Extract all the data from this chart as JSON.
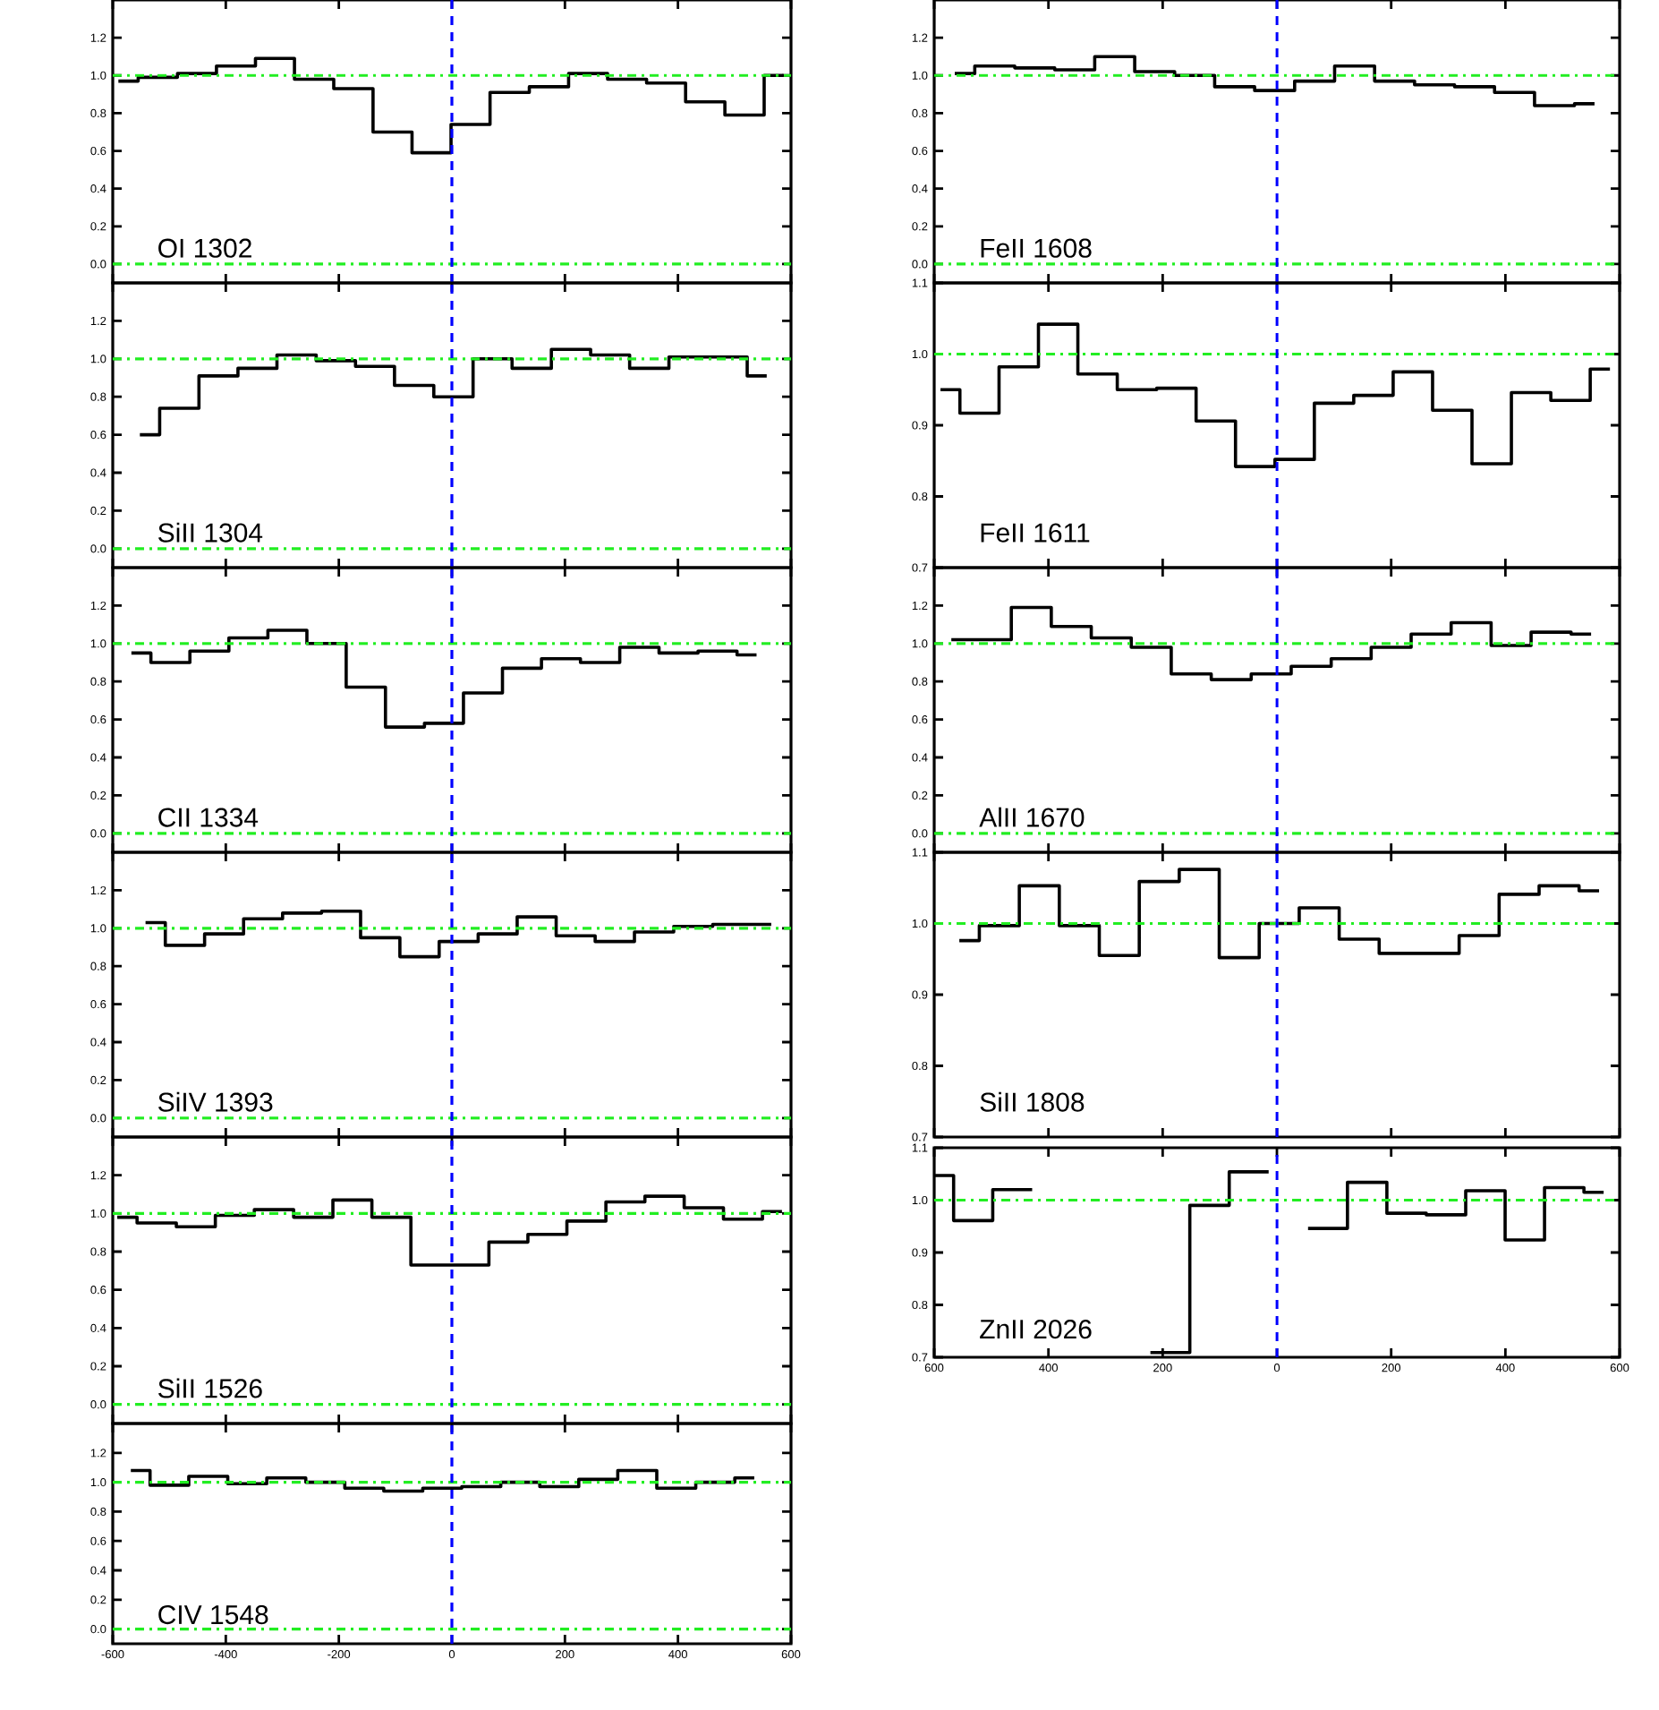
{
  "chart_data": [
    {
      "type": "step",
      "title": "OI 1302",
      "color": "#000000",
      "xlim": [
        -600,
        600
      ],
      "ylim": [
        -0.1,
        1.4
      ],
      "tick_labels": "y",
      "xticks": [
        -600,
        -400,
        -200,
        0,
        200,
        400,
        600
      ],
      "yticks": [
        {
          "value": 0,
          "label": "0.0"
        },
        {
          "value": 0.2,
          "label": "0.2"
        },
        {
          "value": 0.4,
          "label": "0.4"
        },
        {
          "value": 0.6,
          "label": "0.6"
        },
        {
          "value": 0.8,
          "label": "0.8"
        },
        {
          "value": 1.0,
          "label": "1.0"
        },
        {
          "value": 1.2,
          "label": "1.2"
        }
      ],
      "x": [
        -590,
        -520,
        -451,
        -382,
        -313,
        -244,
        -174,
        -105,
        -36,
        33,
        102,
        172,
        241,
        310,
        379,
        448,
        518,
        587
      ],
      "values": [
        0.97,
        0.99,
        1.01,
        1.05,
        1.09,
        0.98,
        0.93,
        0.7,
        0.59,
        0.74,
        0.91,
        0.94,
        1.01,
        0.98,
        0.96,
        0.86,
        0.79,
        1.0
      ],
      "ref_lines": [
        {
          "axis": "y",
          "value": 0,
          "color": "#22ee22",
          "line_style": "dashdot"
        },
        {
          "axis": "y",
          "value": 1,
          "color": "#22ee22",
          "line_style": "dashdot"
        },
        {
          "axis": "x",
          "value": 0,
          "color": "#0000ff",
          "line_style": "dashed"
        }
      ]
    },
    {
      "type": "step",
      "title": "SiII 1304",
      "color": "#000000",
      "xlim": [
        -600,
        600
      ],
      "ylim": [
        -0.1,
        1.4
      ],
      "tick_labels": "y",
      "xticks": [
        -600,
        -400,
        -200,
        0,
        200,
        400,
        600
      ],
      "yticks": [
        {
          "value": 0,
          "label": "0.0"
        },
        {
          "value": 0.2,
          "label": "0.2"
        },
        {
          "value": 0.4,
          "label": "0.4"
        },
        {
          "value": 0.6,
          "label": "0.6"
        },
        {
          "value": 0.8,
          "label": "0.8"
        },
        {
          "value": 1.0,
          "label": "1.0"
        },
        {
          "value": 1.2,
          "label": "1.2"
        }
      ],
      "x": [
        -552,
        -482,
        -413,
        -344,
        -275,
        -205,
        -136,
        -67,
        3,
        72,
        141,
        211,
        280,
        349,
        419,
        488,
        557
      ],
      "values": [
        0.6,
        0.74,
        0.91,
        0.95,
        1.02,
        0.99,
        0.96,
        0.86,
        0.8,
        1.0,
        0.95,
        1.05,
        1.02,
        0.95,
        1.01,
        1.01,
        0.91
      ],
      "ref_lines": [
        {
          "axis": "y",
          "value": 0,
          "color": "#22ee22",
          "line_style": "dashdot"
        },
        {
          "axis": "y",
          "value": 1,
          "color": "#22ee22",
          "line_style": "dashdot"
        },
        {
          "axis": "x",
          "value": 0,
          "color": "#0000ff",
          "line_style": "dashed"
        }
      ]
    },
    {
      "type": "step",
      "title": "CII 1334",
      "color": "#000000",
      "xlim": [
        -600,
        600
      ],
      "ylim": [
        -0.1,
        1.4
      ],
      "tick_labels": "y",
      "xticks": [
        -600,
        -400,
        -200,
        0,
        200,
        400,
        600
      ],
      "yticks": [
        {
          "value": 0,
          "label": "0.0"
        },
        {
          "value": 0.2,
          "label": "0.2"
        },
        {
          "value": 0.4,
          "label": "0.4"
        },
        {
          "value": 0.6,
          "label": "0.6"
        },
        {
          "value": 0.8,
          "label": "0.8"
        },
        {
          "value": 1.0,
          "label": "1.0"
        },
        {
          "value": 1.2,
          "label": "1.2"
        }
      ],
      "x": [
        -567,
        -498,
        -429,
        -360,
        -291,
        -222,
        -152,
        -83,
        -14,
        55,
        124,
        193,
        262,
        332,
        401,
        470,
        539
      ],
      "values": [
        0.95,
        0.9,
        0.96,
        1.03,
        1.07,
        1.0,
        0.77,
        0.56,
        0.58,
        0.74,
        0.87,
        0.92,
        0.9,
        0.98,
        0.95,
        0.96,
        0.94
      ],
      "ref_lines": [
        {
          "axis": "y",
          "value": 0,
          "color": "#22ee22",
          "line_style": "dashdot"
        },
        {
          "axis": "y",
          "value": 1,
          "color": "#22ee22",
          "line_style": "dashdot"
        },
        {
          "axis": "x",
          "value": 0,
          "color": "#0000ff",
          "line_style": "dashed"
        }
      ]
    },
    {
      "type": "step",
      "title": "SiIV 1393",
      "color": "#000000",
      "xlim": [
        -600,
        600
      ],
      "ylim": [
        -0.1,
        1.4
      ],
      "tick_labels": "y",
      "xticks": [
        -600,
        -400,
        -200,
        0,
        200,
        400,
        600
      ],
      "yticks": [
        {
          "value": 0,
          "label": "0.0"
        },
        {
          "value": 0.2,
          "label": "0.2"
        },
        {
          "value": 0.4,
          "label": "0.4"
        },
        {
          "value": 0.6,
          "label": "0.6"
        },
        {
          "value": 0.8,
          "label": "0.8"
        },
        {
          "value": 1.0,
          "label": "1.0"
        },
        {
          "value": 1.2,
          "label": "1.2"
        }
      ],
      "x": [
        -542,
        -472,
        -403,
        -334,
        -265,
        -196,
        -127,
        -57,
        12,
        81,
        150,
        219,
        288,
        358,
        427,
        496,
        565
      ],
      "values": [
        1.03,
        0.91,
        0.97,
        1.05,
        1.08,
        1.09,
        0.95,
        0.85,
        0.93,
        0.97,
        1.06,
        0.96,
        0.93,
        0.98,
        1.01,
        1.02,
        1.02
      ],
      "ref_lines": [
        {
          "axis": "y",
          "value": 0,
          "color": "#22ee22",
          "line_style": "dashdot"
        },
        {
          "axis": "y",
          "value": 1,
          "color": "#22ee22",
          "line_style": "dashdot"
        },
        {
          "axis": "x",
          "value": 0,
          "color": "#0000ff",
          "line_style": "dashed"
        }
      ]
    },
    {
      "type": "step",
      "title": "SiII 1526",
      "color": "#000000",
      "xlim": [
        -600,
        600
      ],
      "ylim": [
        -0.1,
        1.4
      ],
      "tick_labels": "y",
      "xticks": [
        -600,
        -400,
        -200,
        0,
        200,
        400,
        600
      ],
      "yticks": [
        {
          "value": 0,
          "label": "0.0"
        },
        {
          "value": 0.2,
          "label": "0.2"
        },
        {
          "value": 0.4,
          "label": "0.4"
        },
        {
          "value": 0.6,
          "label": "0.6"
        },
        {
          "value": 0.8,
          "label": "0.8"
        },
        {
          "value": 1.0,
          "label": "1.0"
        },
        {
          "value": 1.2,
          "label": "1.2"
        }
      ],
      "x": [
        -592,
        -522,
        -453,
        -384,
        -315,
        -245,
        -176,
        -107,
        -38,
        31,
        100,
        169,
        238,
        307,
        376,
        446,
        515,
        584
      ],
      "values": [
        0.98,
        0.95,
        0.93,
        0.99,
        1.02,
        0.98,
        1.07,
        0.98,
        0.73,
        0.73,
        0.85,
        0.89,
        0.96,
        1.06,
        1.09,
        1.03,
        0.97,
        1.01
      ],
      "ref_lines": [
        {
          "axis": "y",
          "value": 0,
          "color": "#22ee22",
          "line_style": "dashdot"
        },
        {
          "axis": "y",
          "value": 1,
          "color": "#22ee22",
          "line_style": "dashdot"
        },
        {
          "axis": "x",
          "value": 0,
          "color": "#0000ff",
          "line_style": "dashed"
        }
      ]
    },
    {
      "type": "step",
      "title": "CIV 1548",
      "color": "#000000",
      "xlim": [
        -600,
        600
      ],
      "ylim": [
        -0.1,
        1.4
      ],
      "xticks": [
        -600,
        -400,
        -200,
        0,
        200,
        400,
        600
      ],
      "yticks": [
        {
          "value": 0,
          "label": "0.0"
        },
        {
          "value": 0.2,
          "label": "0.2"
        },
        {
          "value": 0.4,
          "label": "0.4"
        },
        {
          "value": 0.6,
          "label": "0.6"
        },
        {
          "value": 0.8,
          "label": "0.8"
        },
        {
          "value": 1.0,
          "label": "1.0"
        },
        {
          "value": 1.2,
          "label": "1.2"
        }
      ],
      "x": [
        -568,
        -500,
        -431,
        -362,
        -293,
        -224,
        -155,
        -86,
        -17,
        52,
        121,
        190,
        259,
        328,
        397,
        466,
        535
      ],
      "values": [
        1.08,
        0.98,
        1.04,
        0.99,
        1.03,
        1.0,
        0.96,
        0.94,
        0.96,
        0.97,
        1.0,
        0.97,
        1.02,
        1.08,
        0.96,
        1.0,
        1.03
      ],
      "ref_lines": [
        {
          "axis": "y",
          "value": 0,
          "color": "#22ee22",
          "line_style": "dashdot"
        },
        {
          "axis": "y",
          "value": 1,
          "color": "#22ee22",
          "line_style": "dashdot"
        },
        {
          "axis": "x",
          "value": 0,
          "color": "#0000ff",
          "line_style": "dashed"
        }
      ]
    },
    {
      "type": "step",
      "title": "FeII 1608",
      "color": "#000000",
      "xlim": [
        -600,
        600
      ],
      "ylim": [
        -0.1,
        1.4
      ],
      "tick_labels": "y",
      "xticks": [
        -600,
        -400,
        -200,
        0,
        200,
        400,
        600
      ],
      "yticks": [
        {
          "value": 0,
          "label": "0.0"
        },
        {
          "value": 0.2,
          "label": "0.2"
        },
        {
          "value": 0.4,
          "label": "0.4"
        },
        {
          "value": 0.6,
          "label": "0.6"
        },
        {
          "value": 0.8,
          "label": "0.8"
        },
        {
          "value": 1.0,
          "label": "1.0"
        },
        {
          "value": 1.2,
          "label": "1.2"
        }
      ],
      "x": [
        -564,
        -494,
        -424,
        -354,
        -284,
        -214,
        -144,
        -74,
        -4,
        66,
        136,
        206,
        276,
        346,
        416,
        486,
        556
      ],
      "values": [
        1.01,
        1.05,
        1.04,
        1.03,
        1.1,
        1.02,
        1.0,
        0.94,
        0.92,
        0.97,
        1.05,
        0.97,
        0.95,
        0.94,
        0.91,
        0.84,
        0.85
      ],
      "ref_lines": [
        {
          "axis": "y",
          "value": 0,
          "color": "#22ee22",
          "line_style": "dashdot"
        },
        {
          "axis": "y",
          "value": 1,
          "color": "#22ee22",
          "line_style": "dashdot"
        },
        {
          "axis": "x",
          "value": 0,
          "color": "#0000ff",
          "line_style": "dashed"
        }
      ]
    },
    {
      "type": "step",
      "title": "FeII 1611",
      "color": "#000000",
      "xlim": [
        -600,
        600
      ],
      "ylim": [
        0.7,
        1.1
      ],
      "tick_labels": "y",
      "xticks": [
        -600,
        -400,
        -200,
        0,
        200,
        400,
        600
      ],
      "yticks": [
        {
          "value": 0.7,
          "label": "0.7"
        },
        {
          "value": 0.8,
          "label": "0.8"
        },
        {
          "value": 0.9,
          "label": "0.9"
        },
        {
          "value": 1.0,
          "label": "1.0"
        },
        {
          "value": 1.1,
          "label": "1.1"
        }
      ],
      "x": [
        -589,
        -521,
        -452,
        -383,
        -314,
        -245,
        -176,
        -107,
        -38,
        31,
        100,
        169,
        238,
        307,
        376,
        445,
        514,
        583
      ],
      "values": [
        0.95,
        0.917,
        0.982,
        1.042,
        0.972,
        0.95,
        0.952,
        0.906,
        0.842,
        0.852,
        0.931,
        0.942,
        0.975,
        0.921,
        0.846,
        0.946,
        0.935,
        0.979
      ],
      "ref_lines": [
        {
          "axis": "y",
          "value": 1,
          "color": "#22ee22",
          "line_style": "dashdot"
        },
        {
          "axis": "x",
          "value": 0,
          "color": "#0000ff",
          "line_style": "dashed"
        }
      ]
    },
    {
      "type": "step",
      "title": "AlII 1670",
      "color": "#000000",
      "xlim": [
        -600,
        600
      ],
      "ylim": [
        -0.1,
        1.4
      ],
      "tick_labels": "y",
      "xticks": [
        -600,
        -400,
        -200,
        0,
        200,
        400,
        600
      ],
      "yticks": [
        {
          "value": 0,
          "label": "0.0"
        },
        {
          "value": 0.2,
          "label": "0.2"
        },
        {
          "value": 0.4,
          "label": "0.4"
        },
        {
          "value": 0.6,
          "label": "0.6"
        },
        {
          "value": 0.8,
          "label": "0.8"
        },
        {
          "value": 1.0,
          "label": "1.0"
        },
        {
          "value": 1.2,
          "label": "1.2"
        }
      ],
      "x": [
        -570,
        -500,
        -430,
        -360,
        -290,
        -220,
        -150,
        -80,
        -10,
        60,
        130,
        200,
        270,
        340,
        410,
        480,
        550
      ],
      "values": [
        1.02,
        1.02,
        1.19,
        1.09,
        1.03,
        0.98,
        0.84,
        0.81,
        0.84,
        0.88,
        0.92,
        0.98,
        1.05,
        1.11,
        0.99,
        1.06,
        1.05
      ],
      "ref_lines": [
        {
          "axis": "y",
          "value": 0,
          "color": "#22ee22",
          "line_style": "dashdot"
        },
        {
          "axis": "y",
          "value": 1,
          "color": "#22ee22",
          "line_style": "dashdot"
        },
        {
          "axis": "x",
          "value": 0,
          "color": "#0000ff",
          "line_style": "dashed"
        }
      ]
    },
    {
      "type": "step",
      "title": "SiII 1808",
      "color": "#000000",
      "xlim": [
        -600,
        600
      ],
      "ylim": [
        0.7,
        1.1
      ],
      "tick_labels": "y",
      "xticks": [
        -600,
        -400,
        -200,
        0,
        200,
        400,
        600
      ],
      "yticks": [
        {
          "value": 0.7,
          "label": "0.7"
        },
        {
          "value": 0.8,
          "label": "0.8"
        },
        {
          "value": 0.9,
          "label": "0.9"
        },
        {
          "value": 1.0,
          "label": "1.0"
        },
        {
          "value": 1.1,
          "label": "1.1"
        }
      ],
      "x": [
        -556,
        -486,
        -416,
        -346,
        -276,
        -206,
        -136,
        -66,
        4,
        74,
        144,
        214,
        284,
        354,
        424,
        494,
        564
      ],
      "values": [
        0.976,
        0.997,
        1.053,
        0.997,
        0.955,
        1.059,
        1.076,
        0.952,
        1.0,
        1.022,
        0.978,
        0.958,
        0.958,
        0.983,
        1.041,
        1.053,
        1.046
      ],
      "ref_lines": [
        {
          "axis": "y",
          "value": 1,
          "color": "#22ee22",
          "line_style": "dashdot"
        },
        {
          "axis": "x",
          "value": 0,
          "color": "#0000ff",
          "line_style": "dashed"
        }
      ]
    },
    {
      "type": "step",
      "title": "ZnII 2026",
      "color": "#000000",
      "xlim": [
        -600,
        600
      ],
      "ylim": [
        0.7,
        1.1
      ],
      "xticks": [
        {
          "value": -600,
          "label": "600"
        },
        {
          "value": -400,
          "label": "400"
        },
        {
          "value": -200,
          "label": "200"
        },
        {
          "value": 0,
          "label": "0"
        },
        {
          "value": 200,
          "label": "200"
        },
        {
          "value": 400,
          "label": "400"
        },
        {
          "value": 600,
          "label": "600"
        }
      ],
      "yticks": [
        {
          "value": 0.7,
          "label": "0.7"
        },
        {
          "value": 0.8,
          "label": "0.8"
        },
        {
          "value": 0.9,
          "label": "0.9"
        },
        {
          "value": 1.0,
          "label": "1.0"
        },
        {
          "value": 1.1,
          "label": "1.1"
        }
      ],
      "x": [
        -600,
        -532,
        -463,
        -394,
        -325,
        -256,
        -187,
        -118,
        -49,
        20,
        89,
        158,
        227,
        296,
        365,
        434,
        503,
        572
      ],
      "values": [
        1.047,
        0.961,
        1.02,
        null,
        null,
        null,
        0.709,
        0.99,
        1.054,
        null,
        0.946,
        1.034,
        0.975,
        0.972,
        1.018,
        0.924,
        1.024,
        1.015
      ],
      "ref_lines": [
        {
          "axis": "y",
          "value": 1,
          "color": "#22ee22",
          "line_style": "dashdot"
        },
        {
          "axis": "x",
          "value": 0,
          "color": "#0000ff",
          "line_style": "dashed"
        }
      ]
    }
  ]
}
